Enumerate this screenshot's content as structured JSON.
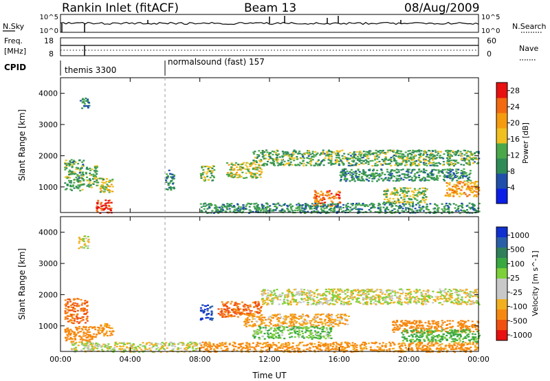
{
  "header": {
    "station": "Rankin Inlet (fitACF)",
    "beam": "Beam 13",
    "date": "08/Aug/2009"
  },
  "status_strip": {
    "left_label": "N.Sky",
    "left_ticks": [
      "10^5",
      "10^0"
    ],
    "right_ticks": [
      "10^5",
      "10^0"
    ],
    "right_label": "N.Search"
  },
  "freq_strip": {
    "left_label_1": "Freq.",
    "left_label_2": "[MHz]",
    "left_ticks": [
      "18",
      "8"
    ],
    "right_ticks": [
      "60",
      "0"
    ],
    "right_label": "Nave"
  },
  "cpid": {
    "label": "CPID",
    "segments": [
      {
        "name": "themis 3300",
        "start_hour": 0
      },
      {
        "name": "normalsound (fast) 157",
        "start_hour": 6
      }
    ]
  },
  "colors": {
    "power_scale": [
      "#0a1ee6",
      "#1f4faa",
      "#2e8b57",
      "#4aa84a",
      "#f0c020",
      "#f59b10",
      "#f26a10",
      "#e81010"
    ],
    "velocity_scale": [
      "#e81010",
      "#f05010",
      "#f7880f",
      "#f2b020",
      "#c8c8c8",
      "#c8c8c8",
      "#7dd03a",
      "#3aa840",
      "#2f7f5a",
      "#2a5fa8",
      "#1030d0"
    ]
  },
  "chart_data": [
    {
      "type": "heatmap",
      "name": "Power",
      "xlabel": "",
      "ylabel": "Slant Range [km]",
      "xlim": [
        0,
        24
      ],
      "ylim": [
        180,
        4500
      ],
      "x_ticks": [
        "00:00",
        "04:00",
        "08:00",
        "12:00",
        "16:00",
        "20:00",
        "00:00"
      ],
      "y_ticks": [
        "1000",
        "2000",
        "3000",
        "4000"
      ],
      "colorbar": {
        "label": "Power [dB]",
        "ticks": [
          "4",
          "8",
          "12",
          "16",
          "20",
          "24",
          "28"
        ],
        "range": [
          0,
          30
        ]
      },
      "regions": [
        {
          "t0": 1.1,
          "t1": 1.6,
          "r0": 3500,
          "r1": 3900,
          "value": 9
        },
        {
          "t0": 0.2,
          "t1": 1.3,
          "r0": 900,
          "r1": 1900,
          "value": 12
        },
        {
          "t0": 1.4,
          "t1": 2.1,
          "r0": 1000,
          "r1": 1700,
          "value": 12
        },
        {
          "t0": 2.2,
          "t1": 3.0,
          "r0": 800,
          "r1": 1300,
          "value": 16
        },
        {
          "t0": 2.0,
          "t1": 2.9,
          "r0": 180,
          "r1": 600,
          "value": 28
        },
        {
          "t0": 6.0,
          "t1": 6.5,
          "r0": 900,
          "r1": 1600,
          "value": 10
        },
        {
          "t0": 8.0,
          "t1": 8.8,
          "r0": 1200,
          "r1": 1700,
          "value": 14
        },
        {
          "t0": 9.5,
          "t1": 11.5,
          "r0": 1300,
          "r1": 1800,
          "value": 16
        },
        {
          "t0": 11.0,
          "t1": 24.0,
          "r0": 1700,
          "r1": 2200,
          "value": 12
        },
        {
          "t0": 16.0,
          "t1": 23.5,
          "r0": 1200,
          "r1": 1600,
          "value": 10
        },
        {
          "t0": 14.5,
          "t1": 16.0,
          "r0": 400,
          "r1": 900,
          "value": 24
        },
        {
          "t0": 18.5,
          "t1": 21.0,
          "r0": 500,
          "r1": 1000,
          "value": 14
        },
        {
          "t0": 22.0,
          "t1": 24.0,
          "r0": 700,
          "r1": 1200,
          "value": 20
        },
        {
          "t0": 8.0,
          "t1": 24.0,
          "r0": 180,
          "r1": 500,
          "value": 10
        }
      ]
    },
    {
      "type": "heatmap",
      "name": "Velocity",
      "xlabel": "Time UT",
      "ylabel": "Slant Range [km]",
      "xlim": [
        0,
        24
      ],
      "ylim": [
        180,
        4500
      ],
      "x_ticks": [
        "00:00",
        "04:00",
        "08:00",
        "12:00",
        "16:00",
        "20:00",
        "00:00"
      ],
      "y_ticks": [
        "1000",
        "2000",
        "3000",
        "4000"
      ],
      "colorbar": {
        "label": "Velocity [m s^-1]",
        "ticks": [
          "1000",
          "500",
          "100",
          "25",
          "-25",
          "-100",
          "-500",
          "-1000"
        ]
      },
      "regions": [
        {
          "t0": 1.0,
          "t1": 1.6,
          "r0": 3500,
          "r1": 3900,
          "value": 0
        },
        {
          "t0": 0.2,
          "t1": 1.5,
          "r0": 1100,
          "r1": 1900,
          "value": -300
        },
        {
          "t0": 0.2,
          "t1": 2.0,
          "r0": 500,
          "r1": 1000,
          "value": -200
        },
        {
          "t0": 2.0,
          "t1": 3.0,
          "r0": 700,
          "r1": 1100,
          "value": -150
        },
        {
          "t0": 8.0,
          "t1": 8.7,
          "r0": 1200,
          "r1": 1700,
          "value": 800
        },
        {
          "t0": 9.0,
          "t1": 11.5,
          "r0": 1300,
          "r1": 1800,
          "value": -300
        },
        {
          "t0": 11.5,
          "t1": 24.0,
          "r0": 1700,
          "r1": 2200,
          "value": 0
        },
        {
          "t0": 10.5,
          "t1": 16.5,
          "r0": 1000,
          "r1": 1400,
          "value": -100
        },
        {
          "t0": 11.0,
          "t1": 15.5,
          "r0": 600,
          "r1": 1000,
          "value": 100
        },
        {
          "t0": 19.0,
          "t1": 24.0,
          "r0": 800,
          "r1": 1200,
          "value": -200
        },
        {
          "t0": 19.5,
          "t1": 24.0,
          "r0": 500,
          "r1": 900,
          "value": 150
        },
        {
          "t0": 0.5,
          "t1": 8.0,
          "r0": 180,
          "r1": 500,
          "value": 0
        },
        {
          "t0": 8.0,
          "t1": 24.0,
          "r0": 180,
          "r1": 500,
          "value": -150
        }
      ]
    }
  ]
}
